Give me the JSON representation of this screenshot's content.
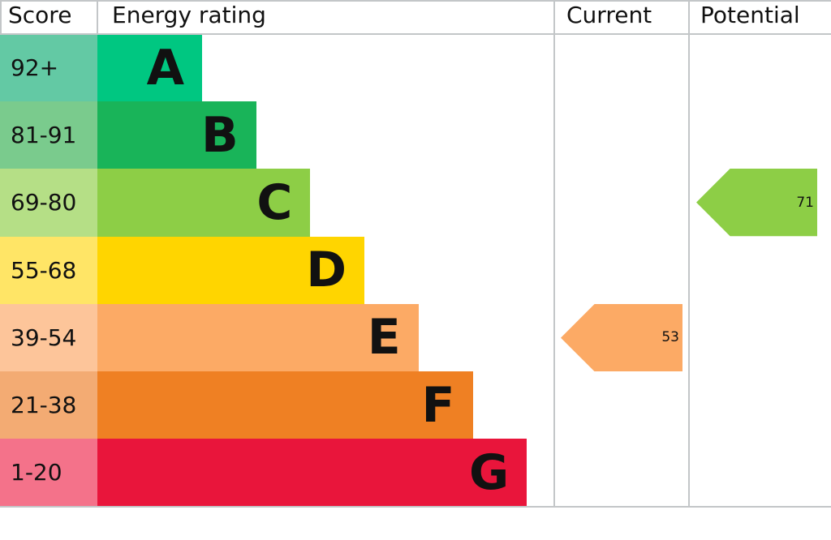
{
  "chart_data": {
    "type": "bar",
    "headers": {
      "score": "Score",
      "rating": "Energy rating",
      "current": "Current",
      "potential": "Potential"
    },
    "bands": [
      {
        "letter": "A",
        "range": "92+",
        "color": "#00c781",
        "score_color": "#63c9a4"
      },
      {
        "letter": "B",
        "range": "81-91",
        "color": "#19b459",
        "score_color": "#7acb8d"
      },
      {
        "letter": "C",
        "range": "69-80",
        "color": "#8dce46",
        "score_color": "#b5df86"
      },
      {
        "letter": "D",
        "range": "55-68",
        "color": "#ffd500",
        "score_color": "#ffe566"
      },
      {
        "letter": "E",
        "range": "39-54",
        "color": "#fcaa65",
        "score_color": "#fdc59a"
      },
      {
        "letter": "F",
        "range": "21-38",
        "color": "#ef8023",
        "score_color": "#f3ab73"
      },
      {
        "letter": "G",
        "range": "1-20",
        "color": "#e9153b",
        "score_color": "#f4728a"
      }
    ],
    "current": {
      "value": 53,
      "band": "E",
      "color": "#fcaa65"
    },
    "potential": {
      "value": 71,
      "band": "C",
      "color": "#8dce46"
    }
  }
}
